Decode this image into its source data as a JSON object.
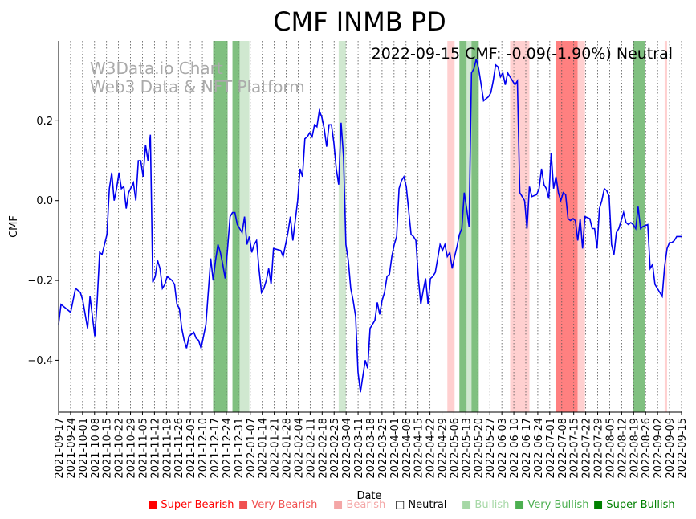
{
  "chart_data": {
    "type": "line",
    "title": "CMF INMB PD",
    "annotation": "2022-09-15 CMF: -0.09(-1.90%) Neutral",
    "watermark": [
      "W3Data.io Chart",
      "Web3 Data & NFT Platform"
    ],
    "xlabel": "Date",
    "ylabel": "CMF",
    "ylim": [
      -0.53,
      0.4
    ],
    "yticks": [
      -0.4,
      -0.2,
      0.0,
      0.2
    ],
    "ytick_labels": [
      "−0.4",
      "−0.2",
      "0.0",
      "0.2"
    ],
    "x_start": "2021-09-17",
    "x_end": "2022-09-15",
    "xtick_labels": [
      "2021-09-17",
      "2021-09-24",
      "2021-10-01",
      "2021-10-08",
      "2021-10-15",
      "2021-10-22",
      "2021-10-29",
      "2021-11-05",
      "2021-11-12",
      "2021-11-19",
      "2021-11-26",
      "2021-12-03",
      "2021-12-10",
      "2021-12-17",
      "2021-12-24",
      "2021-12-31",
      "2022-01-07",
      "2022-01-14",
      "2022-01-21",
      "2022-01-28",
      "2022-02-04",
      "2022-02-11",
      "2022-02-18",
      "2022-02-25",
      "2022-03-04",
      "2022-03-11",
      "2022-03-18",
      "2022-03-25",
      "2022-04-01",
      "2022-04-08",
      "2022-04-15",
      "2022-04-22",
      "2022-04-29",
      "2022-05-06",
      "2022-05-13",
      "2022-05-20",
      "2022-05-27",
      "2022-06-03",
      "2022-06-10",
      "2022-06-17",
      "2022-06-24",
      "2022-07-01",
      "2022-07-08",
      "2022-07-15",
      "2022-07-22",
      "2022-07-29",
      "2022-08-05",
      "2022-08-12",
      "2022-08-19",
      "2022-08-26",
      "2022-09-02",
      "2022-09-09",
      "2022-09-15"
    ],
    "series": [
      {
        "name": "CMF",
        "color": "#0000ee",
        "points": [
          [
            0,
            -0.31
          ],
          [
            1,
            -0.26
          ],
          [
            3,
            -0.27
          ],
          [
            5,
            -0.28
          ],
          [
            7,
            -0.22
          ],
          [
            9,
            -0.23
          ],
          [
            10,
            -0.25
          ],
          [
            12,
            -0.32
          ],
          [
            13,
            -0.24
          ],
          [
            15,
            -0.34
          ],
          [
            16,
            -0.25
          ],
          [
            17,
            -0.13
          ],
          [
            18,
            -0.135
          ],
          [
            20,
            -0.085
          ],
          [
            21,
            0.03
          ],
          [
            22,
            0.07
          ],
          [
            23,
            0.0
          ],
          [
            24,
            0.03
          ],
          [
            25,
            0.07
          ],
          [
            26,
            0.03
          ],
          [
            27,
            0.035
          ],
          [
            28,
            -0.02
          ],
          [
            29,
            0.02
          ],
          [
            31,
            0.045
          ],
          [
            32,
            0.0
          ],
          [
            33,
            0.1
          ],
          [
            34,
            0.1
          ],
          [
            35,
            0.06
          ],
          [
            36,
            0.14
          ],
          [
            37,
            0.1
          ],
          [
            38,
            0.165
          ],
          [
            39,
            -0.205
          ],
          [
            40,
            -0.19
          ],
          [
            41,
            -0.15
          ],
          [
            42,
            -0.17
          ],
          [
            43,
            -0.22
          ],
          [
            44,
            -0.21
          ],
          [
            45,
            -0.19
          ],
          [
            47,
            -0.2
          ],
          [
            48,
            -0.21
          ],
          [
            49,
            -0.26
          ],
          [
            50,
            -0.27
          ],
          [
            51,
            -0.32
          ],
          [
            52,
            -0.35
          ],
          [
            53,
            -0.37
          ],
          [
            54,
            -0.34
          ],
          [
            56,
            -0.33
          ],
          [
            57,
            -0.345
          ],
          [
            58,
            -0.35
          ],
          [
            59,
            -0.37
          ],
          [
            60,
            -0.34
          ],
          [
            61,
            -0.31
          ],
          [
            63,
            -0.145
          ],
          [
            64,
            -0.2
          ],
          [
            65,
            -0.15
          ],
          [
            66,
            -0.11
          ],
          [
            67,
            -0.13
          ],
          [
            68,
            -0.16
          ],
          [
            69,
            -0.195
          ],
          [
            70,
            -0.12
          ],
          [
            71,
            -0.04
          ],
          [
            72,
            -0.03
          ],
          [
            73,
            -0.03
          ],
          [
            74,
            -0.06
          ],
          [
            76,
            -0.08
          ],
          [
            77,
            -0.04
          ],
          [
            78,
            -0.11
          ],
          [
            79,
            -0.09
          ],
          [
            80,
            -0.13
          ],
          [
            81,
            -0.11
          ],
          [
            82,
            -0.1
          ],
          [
            83,
            -0.17
          ],
          [
            84,
            -0.23
          ],
          [
            85,
            -0.22
          ],
          [
            86,
            -0.2
          ],
          [
            87,
            -0.17
          ],
          [
            88,
            -0.21
          ],
          [
            89,
            -0.12
          ],
          [
            92,
            -0.125
          ],
          [
            93,
            -0.14
          ],
          [
            94,
            -0.11
          ],
          [
            95,
            -0.08
          ],
          [
            96,
            -0.04
          ],
          [
            97,
            -0.1
          ],
          [
            98,
            -0.05
          ],
          [
            99,
            0.0
          ],
          [
            100,
            0.08
          ],
          [
            101,
            0.06
          ],
          [
            102,
            0.155
          ],
          [
            103,
            0.16
          ],
          [
            104,
            0.17
          ],
          [
            105,
            0.16
          ],
          [
            106,
            0.19
          ],
          [
            107,
            0.185
          ],
          [
            108,
            0.225
          ],
          [
            109,
            0.21
          ],
          [
            110,
            0.18
          ],
          [
            111,
            0.135
          ],
          [
            112,
            0.19
          ],
          [
            113,
            0.19
          ],
          [
            114,
            0.145
          ],
          [
            115,
            0.08
          ],
          [
            116,
            0.04
          ],
          [
            117,
            0.195
          ],
          [
            118,
            0.11
          ],
          [
            119,
            -0.11
          ],
          [
            120,
            -0.15
          ],
          [
            121,
            -0.22
          ],
          [
            122,
            -0.25
          ],
          [
            123,
            -0.29
          ],
          [
            124,
            -0.43
          ],
          [
            125,
            -0.48
          ],
          [
            126,
            -0.44
          ],
          [
            127,
            -0.4
          ],
          [
            128,
            -0.42
          ],
          [
            129,
            -0.32
          ],
          [
            130,
            -0.31
          ],
          [
            131,
            -0.3
          ],
          [
            132,
            -0.255
          ],
          [
            133,
            -0.285
          ],
          [
            134,
            -0.25
          ],
          [
            135,
            -0.23
          ],
          [
            136,
            -0.19
          ],
          [
            137,
            -0.185
          ],
          [
            138,
            -0.14
          ],
          [
            139,
            -0.11
          ],
          [
            140,
            -0.09
          ],
          [
            141,
            0.03
          ],
          [
            142,
            0.05
          ],
          [
            143,
            0.06
          ],
          [
            144,
            0.035
          ],
          [
            146,
            -0.085
          ],
          [
            147,
            -0.09
          ],
          [
            148,
            -0.1
          ],
          [
            149,
            -0.195
          ],
          [
            150,
            -0.26
          ],
          [
            151,
            -0.225
          ],
          [
            152,
            -0.195
          ],
          [
            153,
            -0.26
          ],
          [
            154,
            -0.195
          ],
          [
            155,
            -0.19
          ],
          [
            156,
            -0.18
          ],
          [
            157,
            -0.145
          ],
          [
            158,
            -0.11
          ],
          [
            159,
            -0.125
          ],
          [
            160,
            -0.11
          ],
          [
            161,
            -0.14
          ],
          [
            162,
            -0.13
          ],
          [
            163,
            -0.17
          ],
          [
            164,
            -0.14
          ],
          [
            165,
            -0.115
          ],
          [
            166,
            -0.085
          ],
          [
            167,
            -0.07
          ],
          [
            168,
            0.02
          ],
          [
            169,
            -0.02
          ],
          [
            170,
            -0.065
          ],
          [
            171,
            0.32
          ],
          [
            172,
            0.33
          ],
          [
            173,
            0.355
          ],
          [
            174,
            0.33
          ],
          [
            175,
            0.29
          ],
          [
            176,
            0.25
          ],
          [
            177,
            0.255
          ],
          [
            178,
            0.26
          ],
          [
            179,
            0.27
          ],
          [
            180,
            0.3
          ],
          [
            181,
            0.34
          ],
          [
            182,
            0.335
          ],
          [
            183,
            0.31
          ],
          [
            184,
            0.32
          ],
          [
            185,
            0.29
          ],
          [
            186,
            0.32
          ],
          [
            187,
            0.31
          ],
          [
            188,
            0.3
          ],
          [
            189,
            0.29
          ],
          [
            190,
            0.3
          ],
          [
            191,
            0.02
          ],
          [
            192,
            0.01
          ],
          [
            193,
            0.0
          ],
          [
            194,
            -0.07
          ],
          [
            195,
            0.035
          ],
          [
            196,
            0.01
          ],
          [
            198,
            0.015
          ],
          [
            199,
            0.03
          ],
          [
            200,
            0.08
          ],
          [
            201,
            0.04
          ],
          [
            202,
            0.03
          ],
          [
            203,
            0.005
          ],
          [
            204,
            0.12
          ],
          [
            205,
            0.03
          ],
          [
            206,
            0.06
          ],
          [
            207,
            0.02
          ],
          [
            208,
            0.0
          ],
          [
            209,
            0.02
          ],
          [
            210,
            0.015
          ],
          [
            211,
            -0.045
          ],
          [
            212,
            -0.05
          ],
          [
            213,
            -0.045
          ],
          [
            214,
            -0.05
          ],
          [
            215,
            -0.1
          ],
          [
            216,
            -0.045
          ],
          [
            217,
            -0.12
          ],
          [
            218,
            -0.04
          ],
          [
            220,
            -0.045
          ],
          [
            221,
            -0.07
          ],
          [
            222,
            -0.07
          ],
          [
            223,
            -0.12
          ],
          [
            224,
            -0.02
          ],
          [
            225,
            0.0
          ],
          [
            226,
            0.03
          ],
          [
            227,
            0.025
          ],
          [
            228,
            0.01
          ],
          [
            229,
            -0.11
          ],
          [
            230,
            -0.135
          ],
          [
            231,
            -0.08
          ],
          [
            232,
            -0.07
          ],
          [
            233,
            -0.05
          ],
          [
            234,
            -0.03
          ],
          [
            235,
            -0.055
          ],
          [
            236,
            -0.06
          ],
          [
            237,
            -0.055
          ],
          [
            238,
            -0.06
          ],
          [
            239,
            -0.07
          ],
          [
            240,
            -0.015
          ],
          [
            241,
            -0.07
          ],
          [
            242,
            -0.065
          ],
          [
            244,
            -0.06
          ],
          [
            245,
            -0.17
          ],
          [
            246,
            -0.16
          ],
          [
            247,
            -0.21
          ],
          [
            248,
            -0.22
          ],
          [
            249,
            -0.23
          ],
          [
            250,
            -0.24
          ],
          [
            251,
            -0.165
          ],
          [
            252,
            -0.12
          ],
          [
            253,
            -0.105
          ],
          [
            254,
            -0.105
          ],
          [
            255,
            -0.1
          ],
          [
            256,
            -0.09
          ],
          [
            258,
            -0.09
          ]
        ]
      }
    ],
    "signal_bands": [
      {
        "start": 64,
        "end": 70,
        "level": "Very Bullish"
      },
      {
        "start": 72,
        "end": 75,
        "level": "Very Bullish"
      },
      {
        "start": 75,
        "end": 79,
        "level": "Bullish"
      },
      {
        "start": 116,
        "end": 119,
        "level": "Bullish"
      },
      {
        "start": 161,
        "end": 164,
        "level": "Bearish"
      },
      {
        "start": 166,
        "end": 169,
        "level": "Very Bullish"
      },
      {
        "start": 169,
        "end": 171,
        "level": "Bullish"
      },
      {
        "start": 171,
        "end": 174,
        "level": "Very Bullish"
      },
      {
        "start": 187,
        "end": 195,
        "level": "Bearish"
      },
      {
        "start": 206,
        "end": 215,
        "level": "Very Bearish"
      },
      {
        "start": 215,
        "end": 218,
        "level": "Bearish"
      },
      {
        "start": 238,
        "end": 243,
        "level": "Very Bullish"
      },
      {
        "start": 251,
        "end": 252,
        "level": "Bearish"
      }
    ],
    "legend": [
      {
        "label": "Super Bearish",
        "marker": "■",
        "color": "#ff0000"
      },
      {
        "label": "Very Bearish",
        "marker": "■",
        "color": "#f05050"
      },
      {
        "label": "Bearish",
        "marker": "■",
        "color": "#f4a6a6"
      },
      {
        "label": "Neutral",
        "marker": "□",
        "color": "#000000"
      },
      {
        "label": "Bullish",
        "marker": "■",
        "color": "#a6d8a6"
      },
      {
        "label": "Very Bullish",
        "marker": "■",
        "color": "#4caf50"
      },
      {
        "label": "Super Bullish",
        "marker": "■",
        "color": "#008000"
      }
    ],
    "band_colors": {
      "Bearish": "#ffd0d0",
      "Very Bearish": "#ff8080",
      "Super Bearish": "#ff3030",
      "Bullish": "#d0e8d0",
      "Very Bullish": "#80c080",
      "Super Bullish": "#2e8b2e"
    }
  }
}
